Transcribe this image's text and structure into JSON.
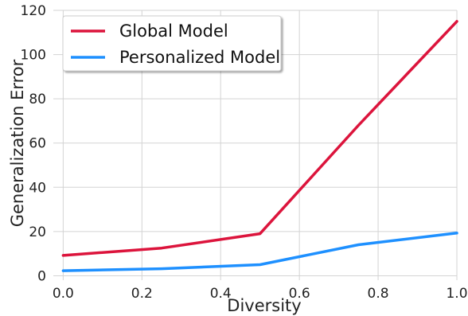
{
  "chart_data": {
    "type": "line",
    "xlabel": "Diversity",
    "ylabel": "Generalization Error",
    "xlim": [
      -0.025,
      1.0
    ],
    "ylim": [
      -2,
      120
    ],
    "x_ticks": [
      0.0,
      0.2,
      0.4,
      0.6,
      0.8,
      1.0
    ],
    "x_tick_labels": [
      "0.0",
      "0.2",
      "0.4",
      "0.6",
      "0.8",
      "1.0"
    ],
    "y_ticks": [
      0,
      20,
      40,
      60,
      80,
      100,
      120
    ],
    "y_tick_labels": [
      "0",
      "20",
      "40",
      "60",
      "80",
      "100",
      "120"
    ],
    "grid": true,
    "legend_position": "top-left",
    "series": [
      {
        "name": "Global Model",
        "color": "#dc143c",
        "x": [
          0.0,
          0.25,
          0.5,
          0.75,
          1.0
        ],
        "y": [
          9.2,
          12.5,
          19.0,
          68.0,
          115.0
        ]
      },
      {
        "name": "Personalized Model",
        "color": "#1e90ff",
        "x": [
          0.0,
          0.25,
          0.5,
          0.75,
          1.0
        ],
        "y": [
          2.3,
          3.2,
          5.0,
          14.0,
          19.3
        ]
      }
    ]
  }
}
